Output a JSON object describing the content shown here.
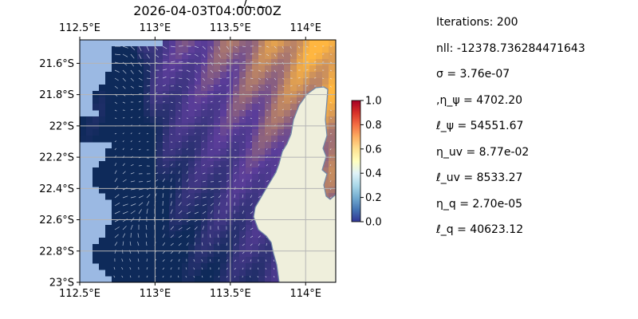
{
  "figure_title": "2026-04-03T04:00:00Z",
  "figure_title_fragment": "_/_  _",
  "chart_data": {
    "type": "heatmap",
    "title": "2026-04-03T04:00:00Z",
    "description_overlay": "quiver arrows (current vectors) over a gridded field on a lat/lon map with land mask",
    "x_ticks": [
      "112.5°E",
      "113°E",
      "113.5°E",
      "114°E"
    ],
    "x_tick_values": [
      112.5,
      113.0,
      113.5,
      114.0
    ],
    "x_ticks_top": [
      "112.5°E",
      "113°E",
      "113.5°E",
      "114°E"
    ],
    "y_ticks": [
      "21.6°S",
      "21.8°S",
      "22°S",
      "22.2°S",
      "22.4°S",
      "22.6°S",
      "22.8°S",
      "23°S"
    ],
    "y_tick_values": [
      -21.6,
      -21.8,
      -22.0,
      -22.2,
      -22.4,
      -22.6,
      -22.8,
      -23.0
    ],
    "xlim": [
      112.5,
      114.2
    ],
    "ylim": [
      -23.0,
      -21.45
    ],
    "grid": true,
    "colorbar": {
      "ticks": [
        "0.0",
        "0.2",
        "0.4",
        "0.6",
        "0.8",
        "1.0"
      ],
      "tick_values": [
        0.0,
        0.2,
        0.4,
        0.6,
        0.8,
        1.0
      ],
      "range": [
        0.0,
        1.0
      ],
      "colormap": "RdYlBu_r",
      "colors": [
        "#313695",
        "#4575b4",
        "#74add1",
        "#abd9e9",
        "#e0f3f8",
        "#ffffbf",
        "#fee090",
        "#fdae61",
        "#f46d43",
        "#d73027",
        "#a50026"
      ]
    },
    "colors": {
      "ocean_background": "#9bb9e3",
      "land": "#efefdc",
      "coastline": "#6f88a8",
      "grid": "#b5b5b5",
      "field_low": "#0e2a5a",
      "field_mid": "#5b3d9a",
      "field_high": "#ffb640"
    }
  },
  "params": [
    "Iterations: 200",
    "nll: -12378.736284471643",
    "σ = 3.76e-07",
    ",η_ψ = 4702.20",
    "ℓ_ψ = 54551.67",
    "η_uv = 8.77e-02",
    "ℓ_uv = 8533.27",
    "η_q = 2.70e-05",
    "ℓ_q = 40623.12"
  ]
}
